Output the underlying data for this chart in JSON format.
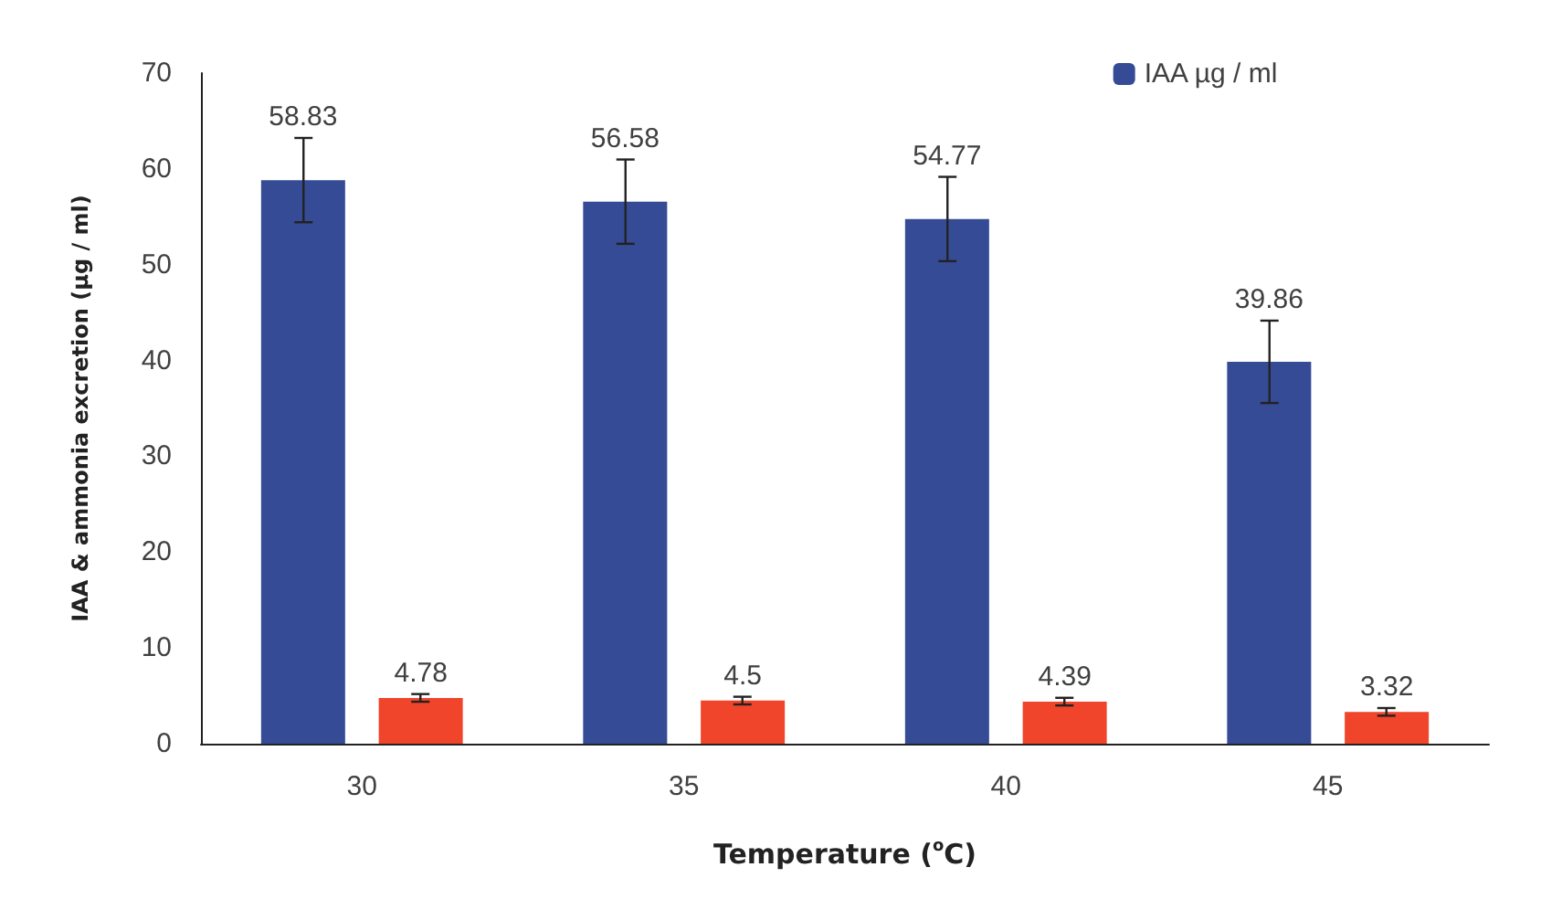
{
  "chart_data": {
    "type": "bar",
    "xlabel": "Temperature ($^{o}$C)",
    "ylabel": "IAA & ammonia excretion (µg / ml)",
    "categories": [
      "30",
      "35",
      "40",
      "45"
    ],
    "series": [
      {
        "name": "IAA µg / ml",
        "color": "#364b96",
        "values": [
          58.83,
          56.58,
          54.77,
          39.86
        ],
        "errors": [
          4.4,
          4.4,
          4.4,
          4.3
        ]
      },
      {
        "color": "#f0452a",
        "values": [
          4.78,
          4.5,
          4.39,
          3.32
        ],
        "errors": [
          0.4,
          0.4,
          0.4,
          0.4
        ]
      }
    ],
    "ylim": [
      0,
      70
    ],
    "yticks": [
      0,
      10,
      20,
      30,
      40,
      50,
      60,
      70
    ],
    "grid": false,
    "legend": "top right",
    "data_labels": true
  }
}
